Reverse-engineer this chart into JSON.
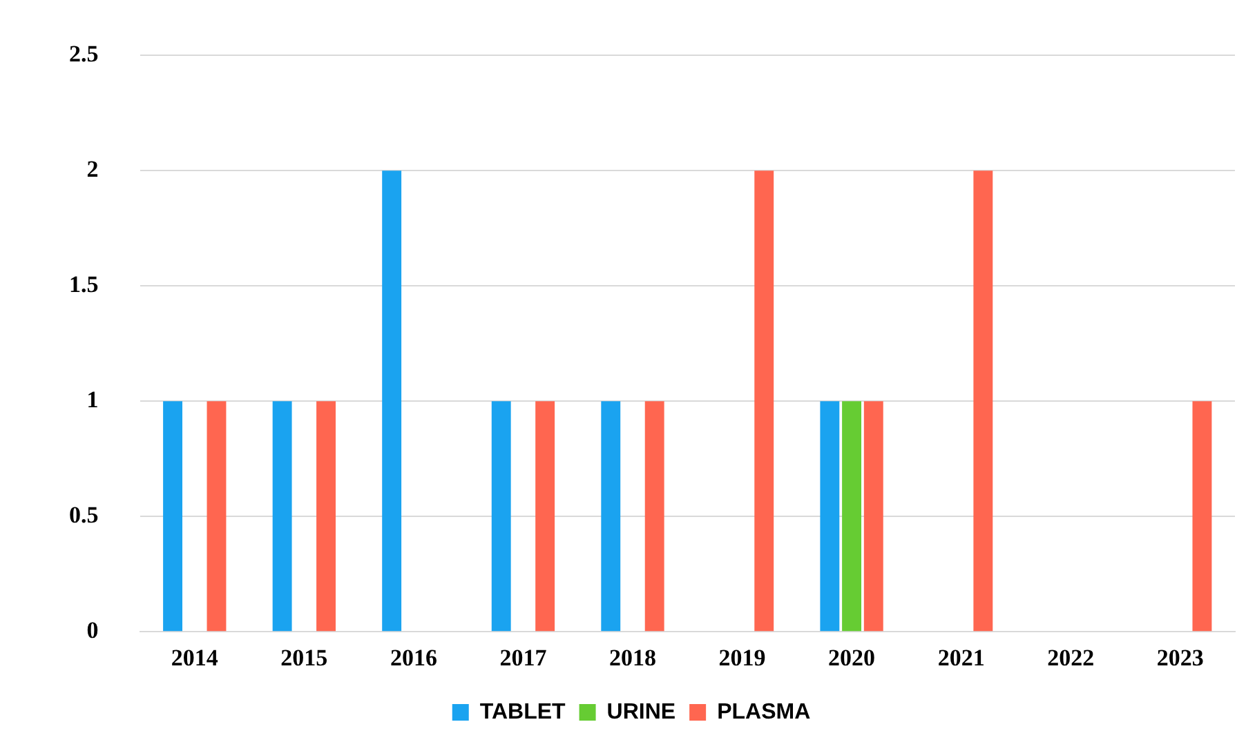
{
  "chart_data": {
    "type": "bar",
    "categories": [
      "2014",
      "2015",
      "2016",
      "2017",
      "2018",
      "2019",
      "2020",
      "2021",
      "2022",
      "2023"
    ],
    "series": [
      {
        "name": "TABLET",
        "color": "#1aa3f0",
        "values": [
          1,
          1,
          2,
          1,
          1,
          0,
          1,
          0,
          0,
          0
        ]
      },
      {
        "name": "URINE",
        "color": "#66cc33",
        "values": [
          0,
          0,
          0,
          0,
          0,
          0,
          1,
          0,
          0,
          0
        ]
      },
      {
        "name": "PLASMA",
        "color": "#ff6650",
        "values": [
          1,
          1,
          0,
          1,
          1,
          2,
          1,
          2,
          0,
          1
        ]
      }
    ],
    "ylim": [
      0,
      2.5
    ],
    "yticks": [
      0,
      0.5,
      1,
      1.5,
      2,
      2.5
    ],
    "grid": "y",
    "legend": "bottom"
  }
}
